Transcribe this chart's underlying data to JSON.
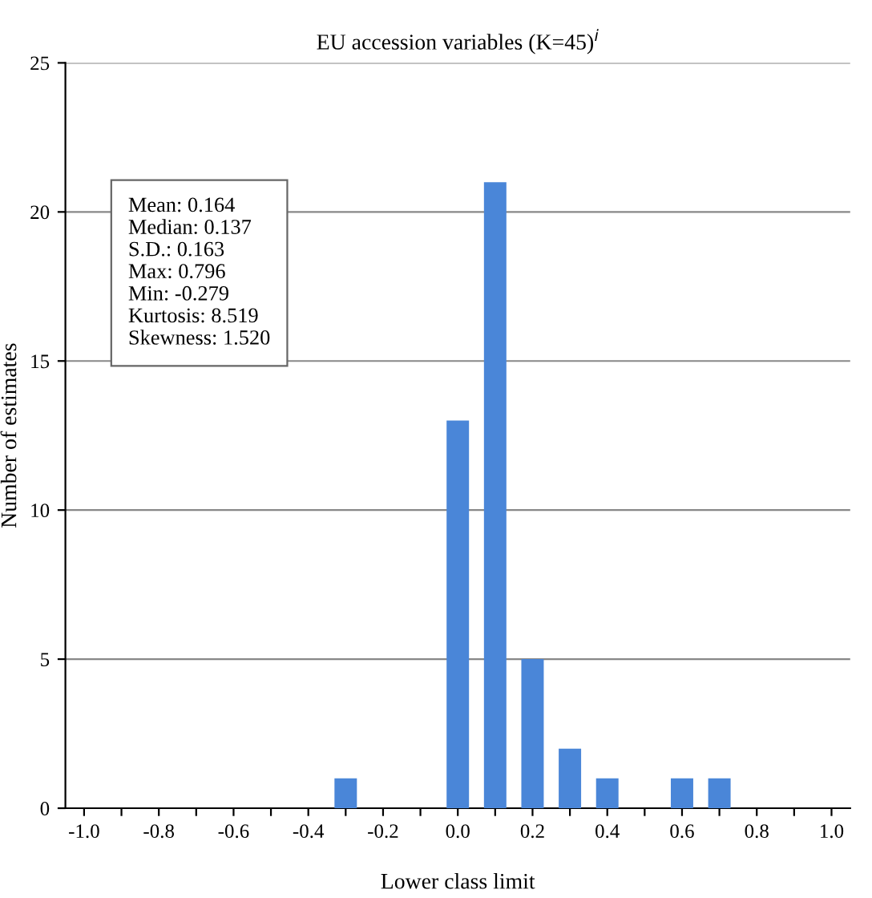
{
  "chart_data": {
    "type": "bar",
    "title": "EU accession variables (K=45)$^{i}$",
    "xlabel": "Lower class limit",
    "ylabel": "Number of estimates",
    "categories": [
      "-1.0",
      null,
      "-0.8",
      null,
      "-0.6",
      null,
      "-0.4",
      null,
      "-0.2",
      null,
      "0.0",
      null,
      "0.2",
      null,
      "0.4",
      null,
      "0.6",
      null,
      "0.8",
      null,
      "1.0"
    ],
    "values": [
      0,
      0,
      0,
      0,
      0,
      0,
      0,
      1,
      0,
      0,
      13,
      21,
      5,
      2,
      1,
      0,
      1,
      1,
      0,
      0,
      0
    ],
    "color": "#4a86d8",
    "ylim": [
      0,
      25
    ],
    "yticks": [
      0,
      5,
      10,
      15,
      20,
      25
    ],
    "grid": "y",
    "annotations": [
      "Mean: 0.164\nMedian: 0.137\nS.D.: 0.163\nMax: 0.796\nMin: -0.279\nKurtosis: 8.519\nSkewness: 1.520"
    ]
  }
}
